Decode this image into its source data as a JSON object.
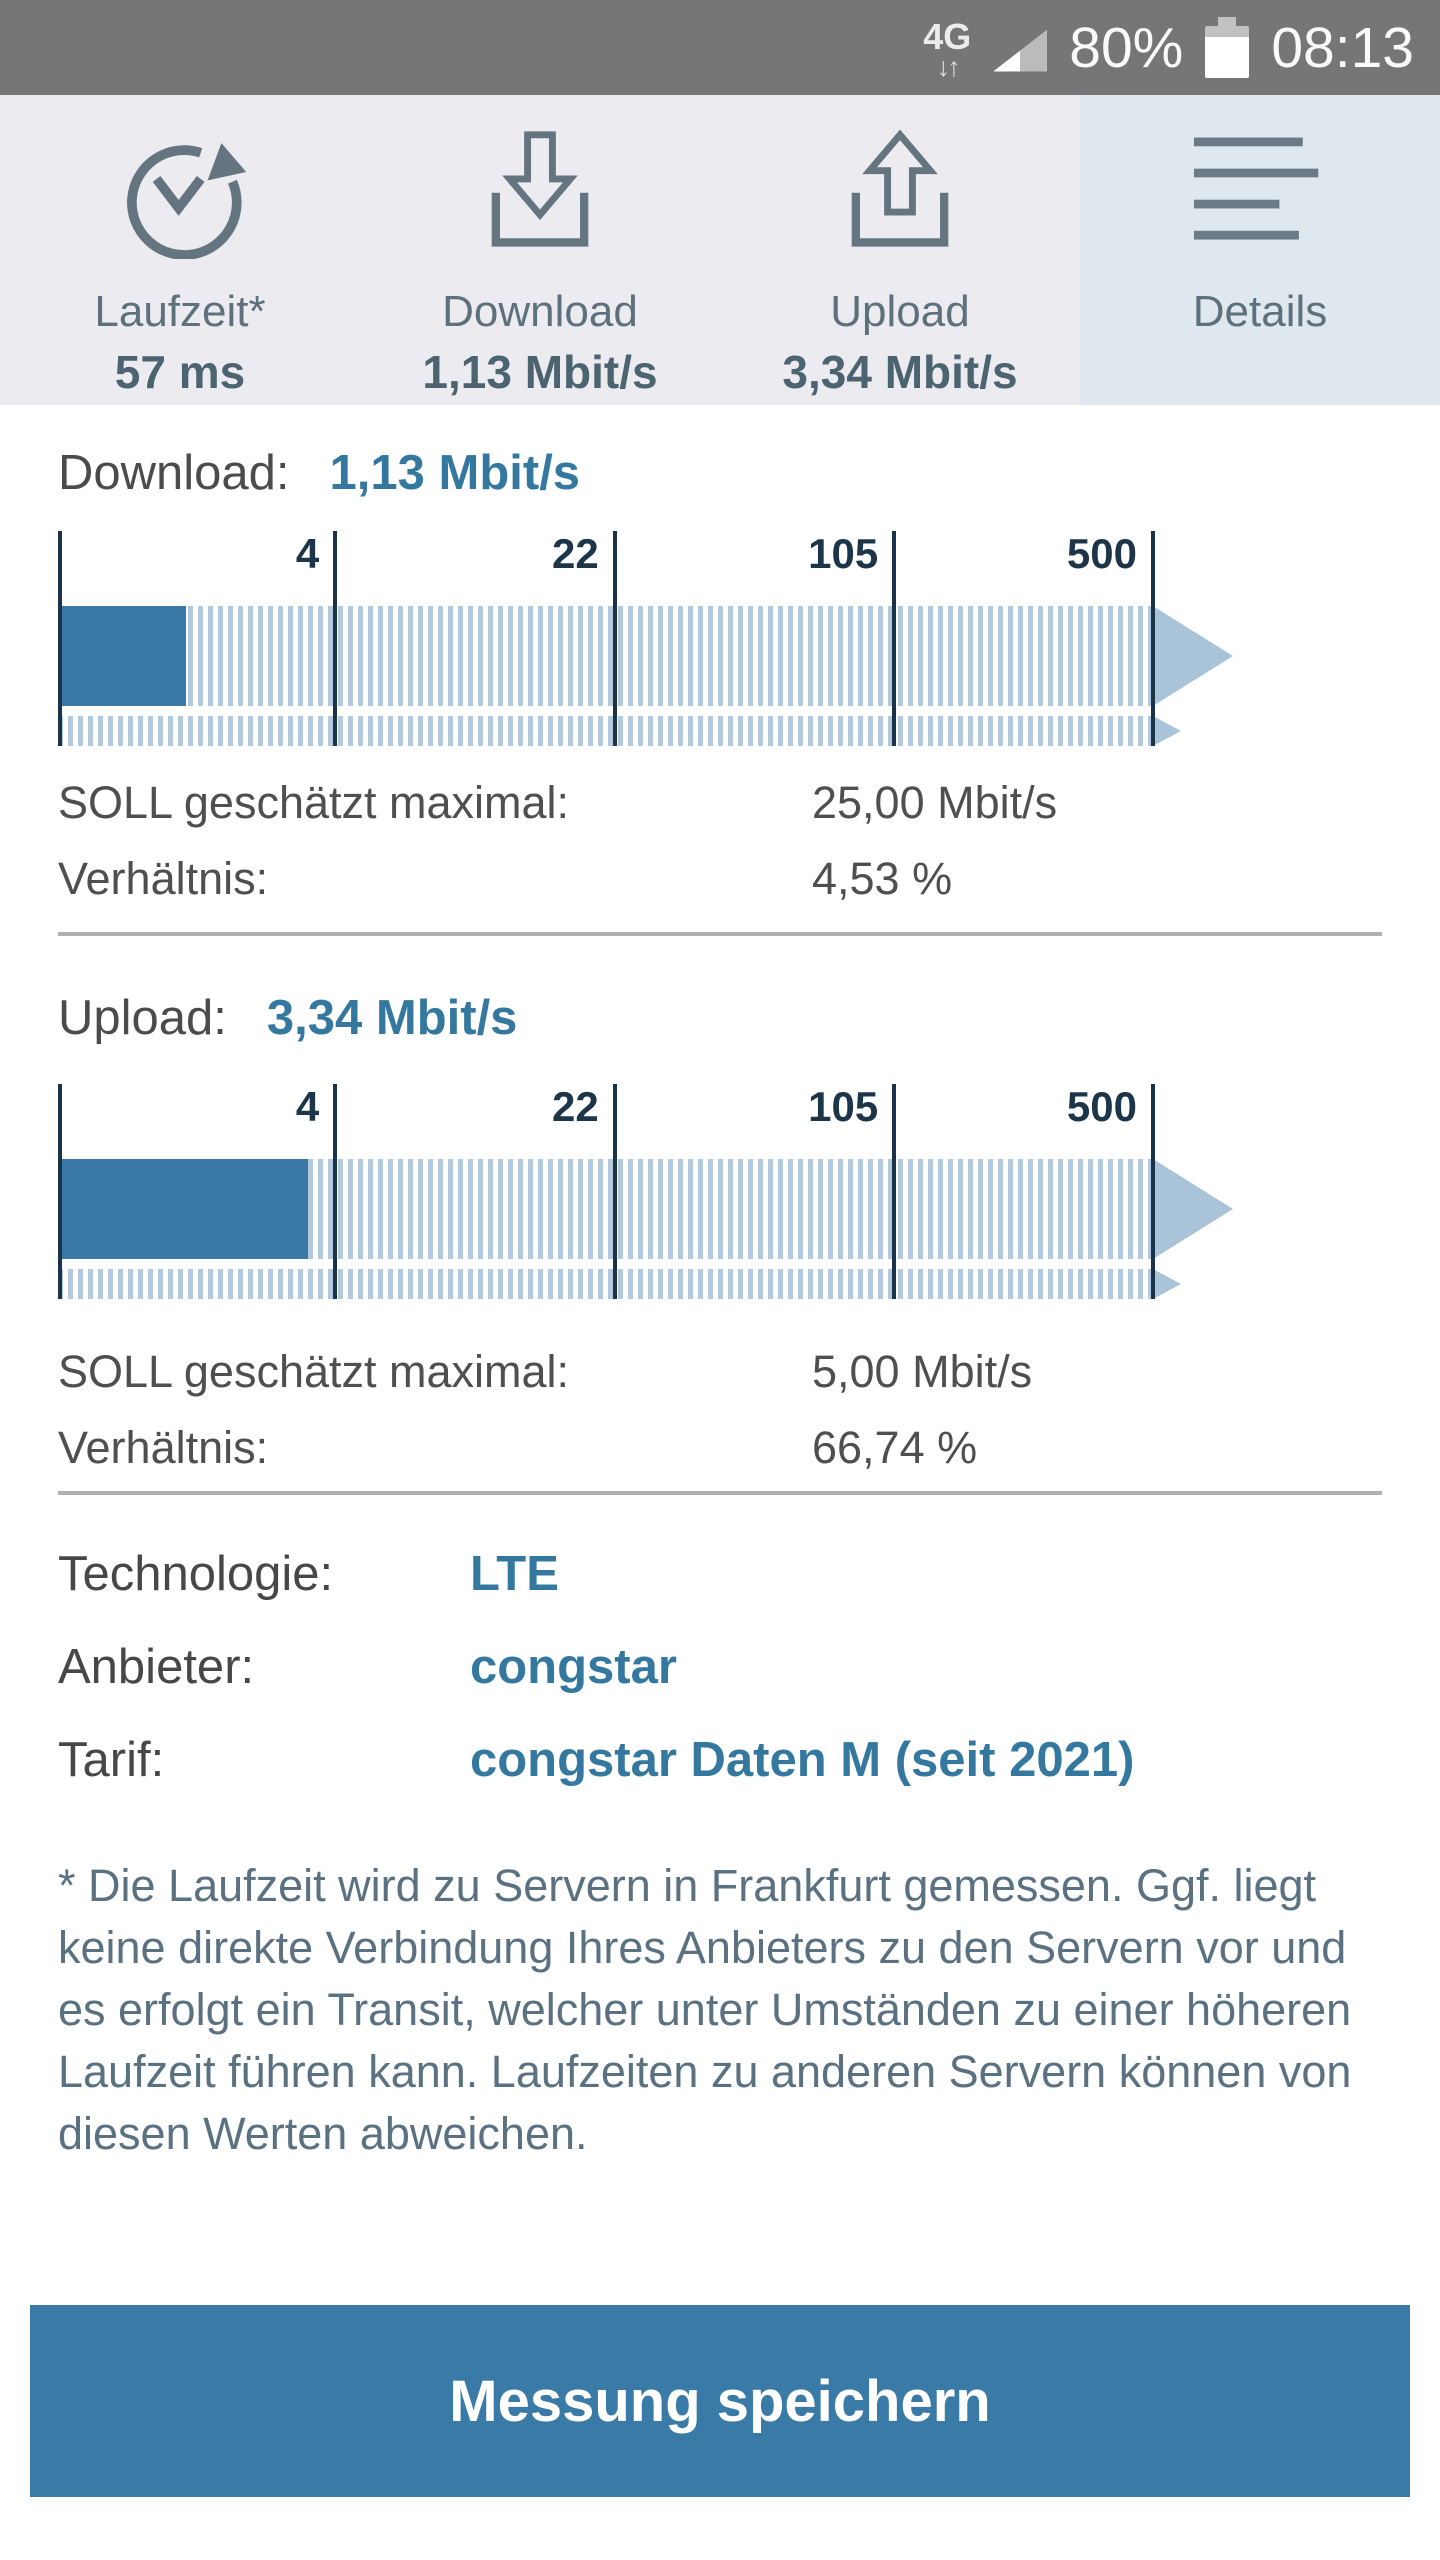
{
  "status_bar": {
    "network": "4G",
    "network_arrows": "↓↑",
    "battery_percent": "80%",
    "time": "08:13"
  },
  "tabs": [
    {
      "label": "Laufzeit*",
      "value": "57 ms",
      "icon": "timer-restart-icon",
      "selected": false
    },
    {
      "label": "Download",
      "value": "1,13 Mbit/s",
      "icon": "download-tray-icon",
      "selected": false
    },
    {
      "label": "Upload",
      "value": "3,34 Mbit/s",
      "icon": "upload-tray-icon",
      "selected": false
    },
    {
      "label": "Details",
      "value": "",
      "icon": "list-lines-icon",
      "selected": true
    }
  ],
  "download_section": {
    "heading_label": "Download:",
    "heading_value": "1,13 Mbit/s",
    "gauge": {
      "tick_labels": [
        "4",
        "22",
        "105",
        "500"
      ],
      "unit": "Mbit/s",
      "measured": 1.13,
      "scale_max": 500,
      "fill_percent": 11.7
    },
    "rows": [
      {
        "label": "SOLL geschätzt maximal:",
        "value": "25,00 Mbit/s"
      },
      {
        "label": "Verhältnis:",
        "value": "4,53 %"
      }
    ]
  },
  "upload_section": {
    "heading_label": "Upload:",
    "heading_value": "3,34 Mbit/s",
    "gauge": {
      "tick_labels": [
        "4",
        "22",
        "105",
        "500"
      ],
      "unit": "Mbit/s",
      "measured": 3.34,
      "scale_max": 500,
      "fill_percent": 22.8
    },
    "rows": [
      {
        "label": "SOLL geschätzt maximal:",
        "value": "5,00 Mbit/s"
      },
      {
        "label": "Verhältnis:",
        "value": "66,74 %"
      }
    ]
  },
  "connection_details": {
    "rows": [
      {
        "label": "Technologie:",
        "value": "LTE"
      },
      {
        "label": "Anbieter:",
        "value": "congstar"
      },
      {
        "label": "Tarif:",
        "value": "congstar Daten M (seit 2021)"
      }
    ]
  },
  "footnote": "* Die Laufzeit wird zu Servern in Frankfurt gemessen. Ggf. liegt keine direkte Verbindung Ihres Anbieters zu den Servern vor und es erfolgt ein Transit, welcher unter Umständen zu einer höheren Laufzeit führen kann. Laufzeiten zu anderen Servern können von diesen Werten abweichen.",
  "save_button": {
    "label": "Messung speichern"
  },
  "colors": {
    "status_bar_bg": "#767676",
    "header_bg": "#ececf0",
    "selected_tab_bg": "#e0e8ef",
    "bar_fill": "#3a78a5",
    "bar_hatch": "#b3c9dd",
    "scale_line": "#1b3348",
    "arrow": "#a9c4d8",
    "value_text_blue": "#35789f",
    "slate_text": "#5d717d",
    "button_bg": "#3a7aa6"
  }
}
